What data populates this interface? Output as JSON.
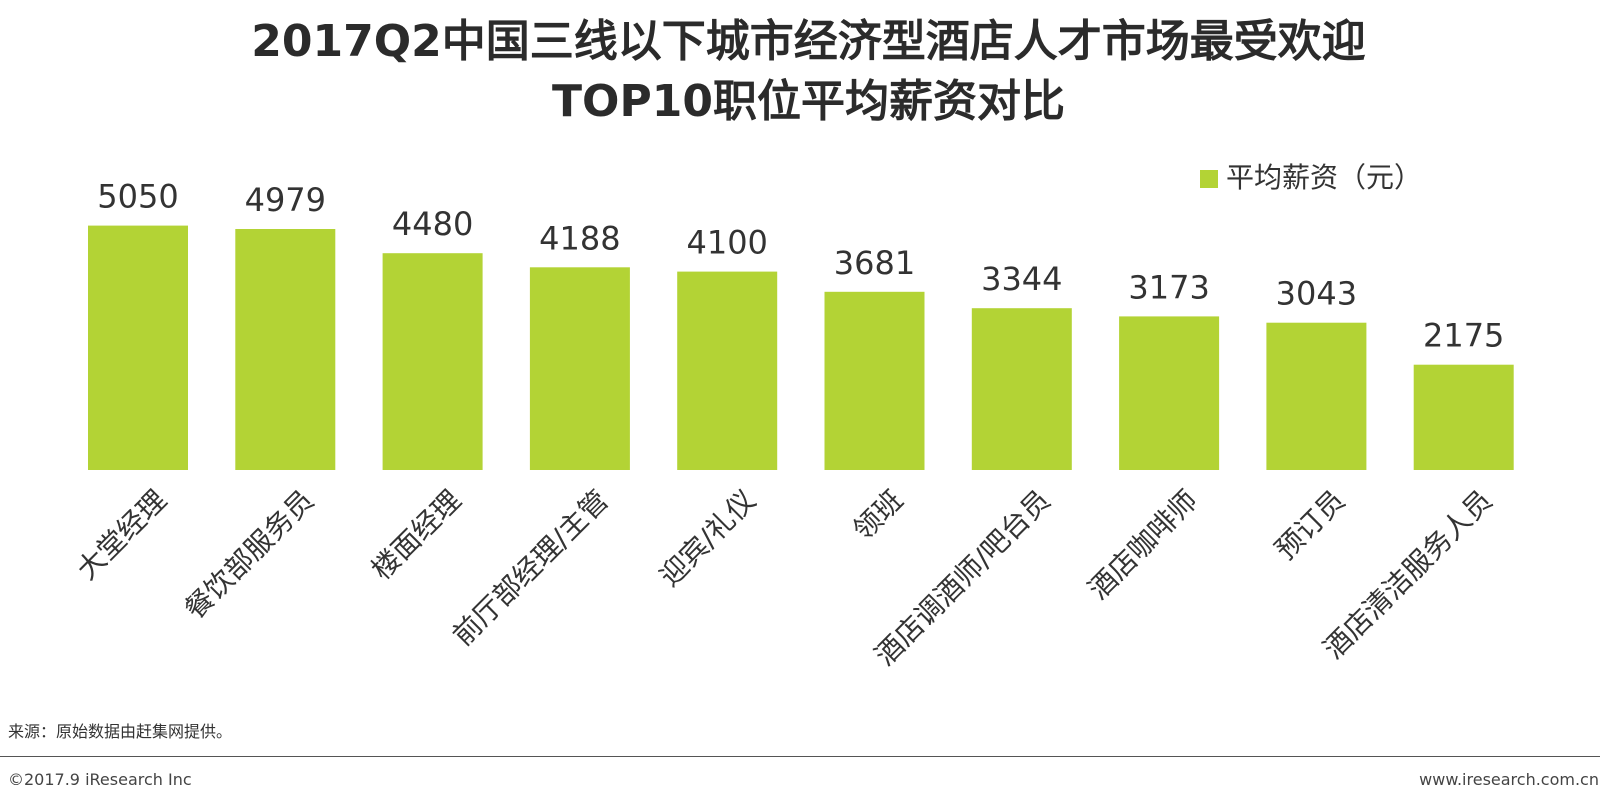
{
  "title_line1": "2017Q2中国三线以下城市经济型酒店人才市场最受欢迎",
  "title_line2": "TOP10职位平均薪资对比",
  "source": "来源：原始数据由赶集网提供。",
  "footer": {
    "copyright": "©2017.9 iResearch Inc",
    "website": "www.iresearch.com.cn"
  },
  "chart_data": {
    "type": "bar",
    "categories": [
      "大堂经理",
      "餐饮部服务员",
      "楼面经理",
      "前厅部经理/主管",
      "迎宾/礼仪",
      "领班",
      "酒店调酒师/吧台员",
      "酒店咖啡师",
      "预订员",
      "酒店清洁服务人员"
    ],
    "series": [
      {
        "name": "平均薪资（元）",
        "values": [
          5050,
          4979,
          4480,
          4188,
          4100,
          3681,
          3344,
          3173,
          3043,
          2175
        ]
      }
    ],
    "data_labels": [
      "5050",
      "4979",
      "4480",
      "4188",
      "4100",
      "3681",
      "3344",
      "3173",
      "3043",
      "2175"
    ],
    "legend_position": "top-right",
    "grid": false,
    "bar_color": "#b3d335"
  }
}
